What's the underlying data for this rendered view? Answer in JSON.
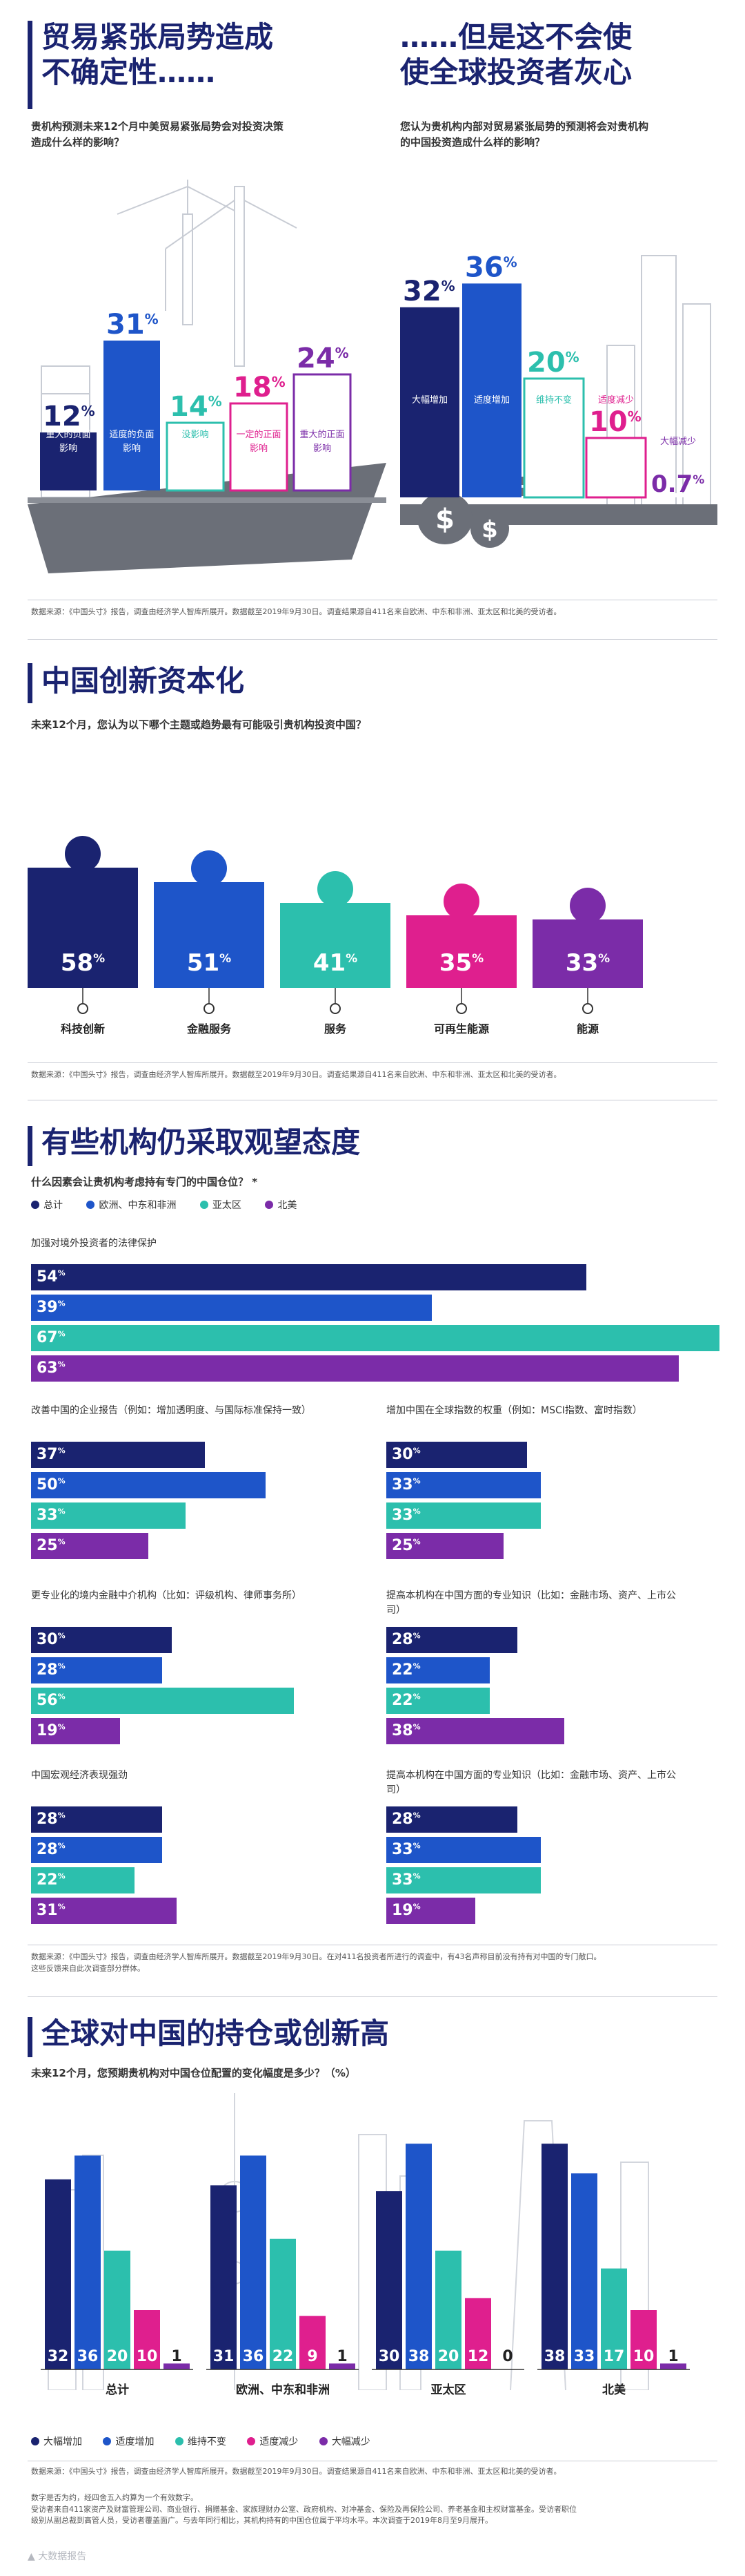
{
  "colors": {
    "navy": "#1a2370",
    "blue": "#1e55c9",
    "teal": "#2cbfad",
    "magenta": "#df1f8e",
    "purple": "#7b2ca8",
    "gray": "#6b6f78"
  },
  "s1": {
    "title_left": [
      "贸易紧张局势造成",
      "不确定性……"
    ],
    "question_left": [
      "贵机构预测未来12个月中美贸易紧张局势会对投资决策",
      "造成什么样的影响？"
    ],
    "title_right": [
      "……但是这不会使",
      "使全球投资者灰心"
    ],
    "question_right": [
      "您认为贵机构内部对贸易紧张局势的预测将会对贵机构",
      "的中国投资造成什么样的影响？"
    ],
    "source": "数据来源：《中国头寸》报告，调查由经济学人智库所展开。数据截至2019年9月30日。调查结果源自411名来自欧洲、中东和非洲、亚太区和北美的受访者。"
  },
  "s2": {
    "title": "中国创新资本化",
    "question": "未来12个月，您认为以下哪个主题或趋势最有可能吸引贵机构投资中国？",
    "source": "数据来源：《中国头寸》报告，调查由经济学人智库所展开。数据截至2019年9月30日。调查结果源自411名来自欧洲、中东和非洲、亚太区和北美的受访者。"
  },
  "s3": {
    "title": "有些机构仍采取观望态度",
    "question": "什么因素会让贵机构考虑持有专门的中国仓位？ *",
    "legend": [
      "总计",
      "欧洲、中东和非洲",
      "亚太区",
      "北美"
    ],
    "source_line1": "数据来源：《中国头寸》报告，调查由经济学人智库所展开。数据截至2019年9月30日。在对411名投资者所进行的调查中，有43名声称目前没有持有对中国的专门敞口。",
    "source_line2": "这些反馈来自此次调查部分群体。"
  },
  "s4": {
    "title": "全球对中国的持仓或创新高",
    "question": "未来12个月，您预期贵机构对中国仓位配置的变化幅度是多少？（%）",
    "source": "数据来源：《中国头寸》报告，调查由经济学人智库所展开。数据截至2019年9月30日。调查结果源自411名来自欧洲、中东和非洲、亚太区和北美的受访者。",
    "notes": [
      "数字是否为约，经四舍五入约算为一个有效数字。",
      "受访者来自411家资产及财富管理公司、商业银行、捐赠基金、家族理财办公室、政府机构、对冲基金、保险及再保险公司、养老基金和主权财富基金。受访者职位",
      "级别从副总裁到高管人员，受访者覆盖面广。与去年同行相比，其机构持有的中国仓位属于平均水平。本次调查于2019年8月至9月展开。"
    ],
    "watermark": "大数据报告"
  },
  "chart_data": [
    {
      "type": "bar",
      "title": "贸易紧张局势造成不确定性……",
      "categories": [
        "重大的负面影响",
        "适度的负面影响",
        "没影响",
        "一定的正面影响",
        "重大的正面影响"
      ],
      "values": [
        12,
        31,
        14,
        18,
        24
      ],
      "unit": "%"
    },
    {
      "type": "bar",
      "title": "……但是这不会使使全球投资者灰心",
      "categories": [
        "大幅增加",
        "适度增加",
        "维持不变",
        "适度减少",
        "大幅减少"
      ],
      "values": [
        32,
        36,
        20,
        10,
        0.7
      ],
      "unit": "%"
    },
    {
      "type": "bar",
      "title": "中国创新资本化",
      "categories": [
        "科技创新",
        "金融服务",
        "服务",
        "可再生能源",
        "能源"
      ],
      "values": [
        58,
        51,
        41,
        35,
        33
      ],
      "unit": "%"
    },
    {
      "type": "bar",
      "orientation": "horizontal",
      "title": "有些机构仍采取观望态度",
      "series_names": [
        "总计",
        "欧洲、中东和非洲",
        "亚太区",
        "北美"
      ],
      "groups": [
        {
          "label": "加强对境外投资者的法律保护",
          "values": [
            54,
            39,
            67,
            63
          ]
        },
        {
          "label": "改善中国的企业报告（例如：增加透明度、与国际标准保持一致）",
          "values": [
            37,
            50,
            33,
            25
          ]
        },
        {
          "label": "增加中国在全球指数的权重（例如：MSCI指数、富时指数）",
          "values": [
            30,
            33,
            33,
            25
          ]
        },
        {
          "label": "更专业化的境内金融中介机构（比如：评级机构、律师事务所）",
          "values": [
            30,
            28,
            56,
            19
          ]
        },
        {
          "label": "提高本机构在中国方面的专业知识（比如：金融市场、资产、上市公司）",
          "values": [
            28,
            22,
            22,
            38
          ]
        },
        {
          "label": "中国宏观经济表现强劲",
          "values": [
            28,
            28,
            22,
            31
          ]
        },
        {
          "label": "提高本机构在中国方面的专业知识（比如：金融市场、资产、上市公司）",
          "values": [
            28,
            33,
            33,
            19
          ]
        }
      ],
      "unit": "%"
    },
    {
      "type": "bar",
      "title": "全球对中国的持仓或创新高",
      "categories": [
        "总计",
        "欧洲、中东和非洲",
        "亚太区",
        "北美"
      ],
      "series": [
        {
          "name": "大幅增加",
          "values": [
            32,
            31,
            30,
            38
          ]
        },
        {
          "name": "适度增加",
          "values": [
            36,
            36,
            38,
            33
          ]
        },
        {
          "name": "维持不变",
          "values": [
            20,
            22,
            20,
            17
          ]
        },
        {
          "name": "适度减少",
          "values": [
            10,
            9,
            12,
            10
          ]
        },
        {
          "name": "大幅减少",
          "values": [
            1,
            1,
            0,
            1
          ]
        }
      ],
      "unit": "%"
    }
  ]
}
